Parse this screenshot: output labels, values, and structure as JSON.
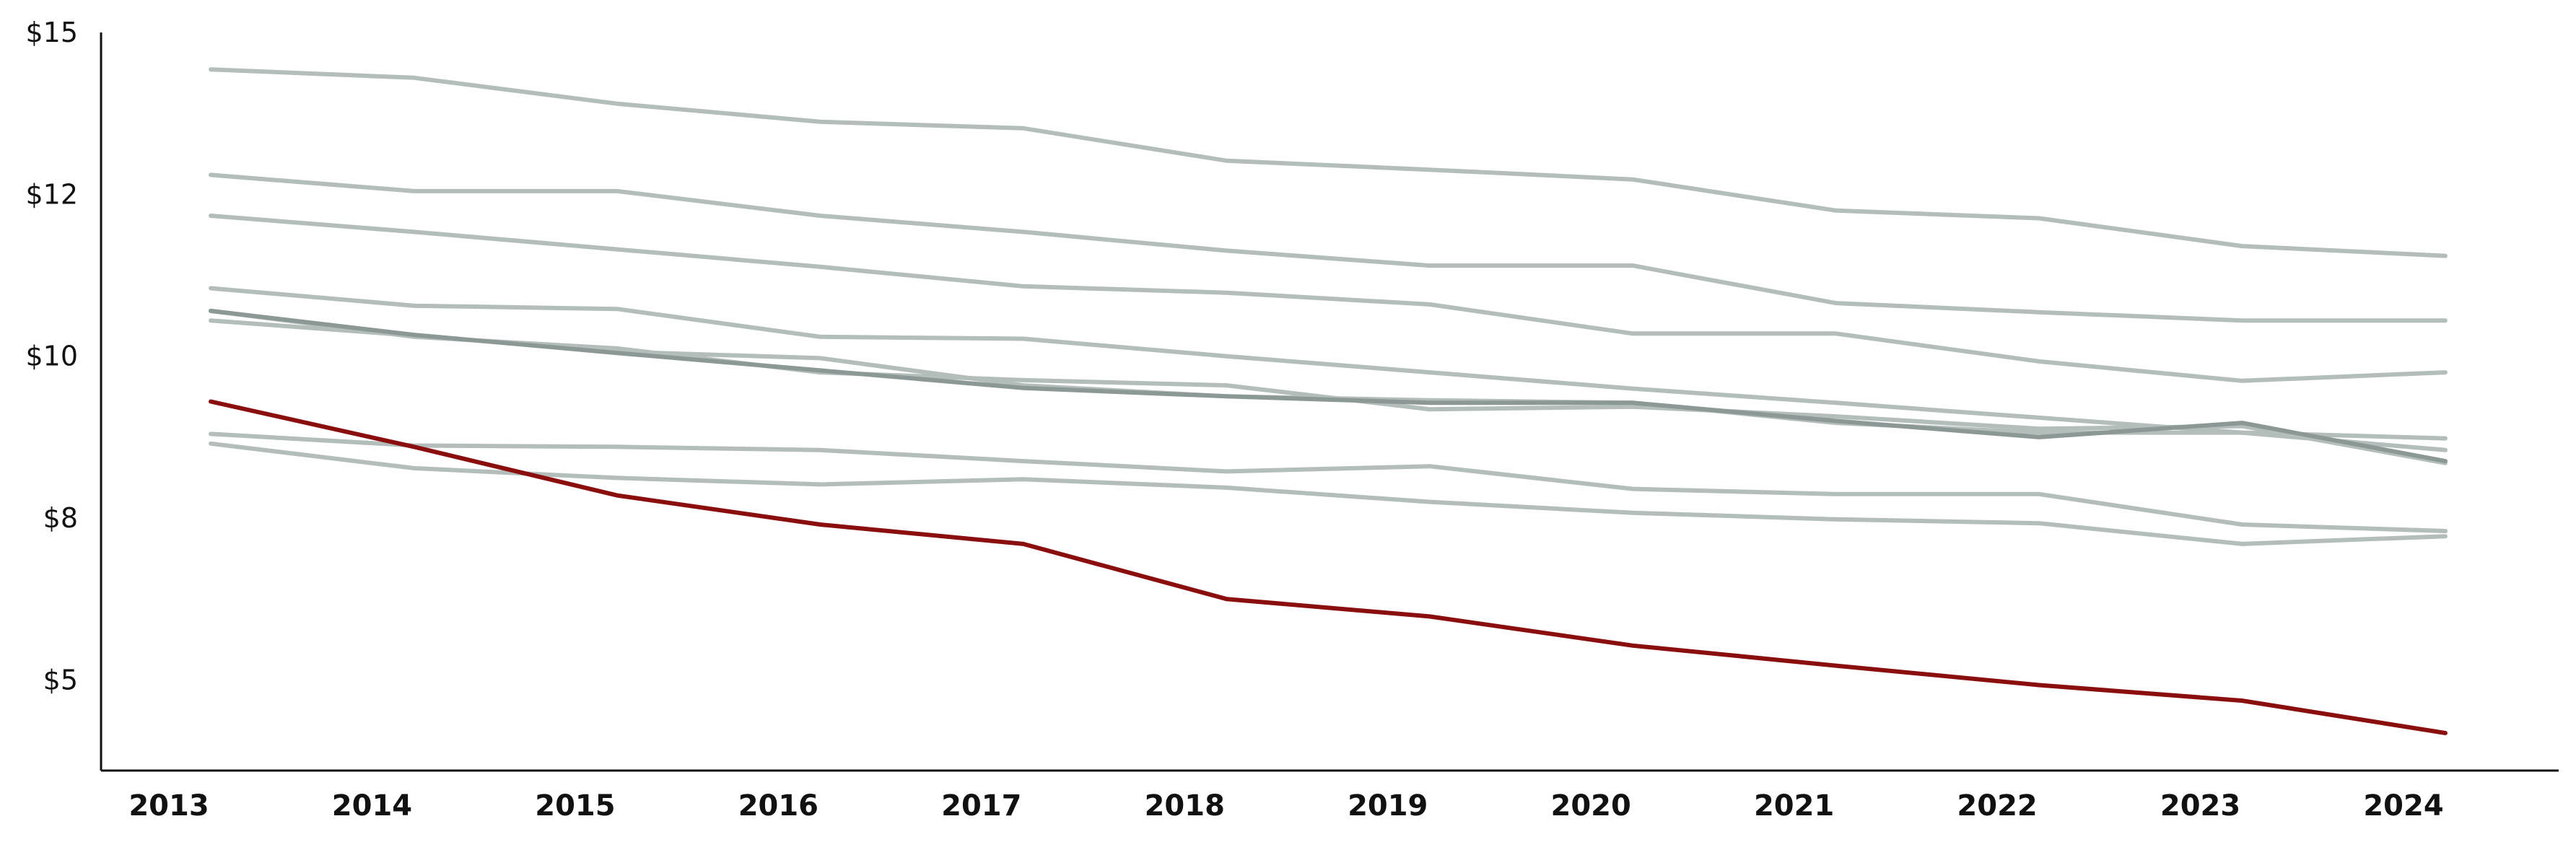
{
  "chart_data": {
    "type": "line",
    "title": "",
    "xlabel": "",
    "ylabel": "",
    "x": [
      "2013",
      "2014",
      "2015",
      "2016",
      "2017",
      "2018",
      "2019",
      "2020",
      "2021",
      "2022",
      "2023",
      "2024"
    ],
    "ylim": [
      3.6,
      15
    ],
    "yticks": [
      {
        "value": 5,
        "label": "$5"
      },
      {
        "value": 7.5,
        "label": "$8"
      },
      {
        "value": 10,
        "label": "$10"
      },
      {
        "value": 12.5,
        "label": "$12"
      },
      {
        "value": 15,
        "label": "$15"
      }
    ],
    "grid": false,
    "legend": "none",
    "colors": {
      "highlight": "#8b0e0e",
      "context": "#b3bdba",
      "context_dark": "#8c9895",
      "axis": "#111111"
    },
    "series": [
      {
        "name": "series-1",
        "role": "context",
        "values": [
          14.43,
          14.3,
          13.9,
          13.62,
          13.52,
          13.02,
          12.88,
          12.73,
          12.25,
          12.13,
          11.7,
          11.55
        ]
      },
      {
        "name": "series-2",
        "role": "context",
        "values": [
          12.8,
          12.55,
          12.55,
          12.17,
          11.92,
          11.63,
          11.4,
          11.4,
          10.82,
          10.68,
          10.55,
          10.55
        ]
      },
      {
        "name": "series-3",
        "role": "context",
        "values": [
          12.17,
          11.92,
          11.65,
          11.38,
          11.08,
          10.98,
          10.8,
          10.35,
          10.35,
          9.92,
          9.62,
          9.75
        ]
      },
      {
        "name": "series-4",
        "role": "context",
        "values": [
          11.05,
          10.78,
          10.73,
          10.3,
          10.27,
          10.0,
          9.75,
          9.5,
          9.28,
          9.05,
          8.82,
          8.73
        ]
      },
      {
        "name": "series-5",
        "role": "context",
        "values": [
          10.55,
          10.32,
          10.07,
          9.97,
          9.55,
          9.38,
          9.32,
          9.28,
          8.97,
          8.82,
          8.82,
          8.55
        ]
      },
      {
        "name": "series-6",
        "role": "context",
        "values": [
          10.7,
          10.3,
          10.12,
          9.75,
          9.63,
          9.55,
          9.18,
          9.22,
          9.07,
          8.88,
          8.92,
          8.35
        ]
      },
      {
        "name": "series-7",
        "role": "context_dark",
        "values": [
          10.7,
          10.33,
          10.05,
          9.78,
          9.51,
          9.38,
          9.28,
          9.28,
          9.0,
          8.75,
          8.97,
          8.38
        ]
      },
      {
        "name": "series-8",
        "role": "context",
        "values": [
          8.8,
          8.62,
          8.6,
          8.55,
          8.38,
          8.22,
          8.3,
          7.95,
          7.87,
          7.87,
          7.4,
          7.3
        ]
      },
      {
        "name": "series-9",
        "role": "context",
        "values": [
          8.65,
          8.27,
          8.12,
          8.02,
          8.1,
          7.97,
          7.75,
          7.58,
          7.48,
          7.42,
          7.1,
          7.22
        ]
      },
      {
        "name": "series-highlight",
        "role": "highlight",
        "values": [
          9.3,
          8.6,
          7.85,
          7.4,
          7.1,
          6.25,
          5.98,
          5.53,
          5.22,
          4.92,
          4.68,
          4.18
        ]
      }
    ]
  }
}
